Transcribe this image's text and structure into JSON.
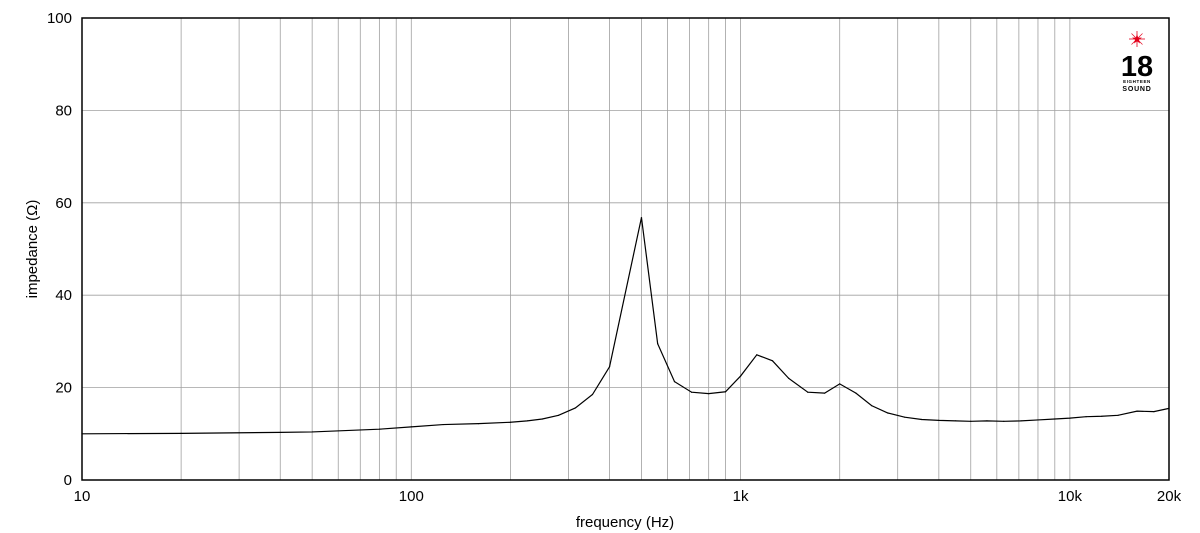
{
  "chart_data": {
    "type": "line",
    "title": "",
    "xlabel": "frequency (Hz)",
    "ylabel": "impedance (Ω)",
    "xscale": "log",
    "xlim": [
      10,
      20000
    ],
    "ylim": [
      0,
      100
    ],
    "grid": true,
    "x_ticks": [
      {
        "value": 10,
        "label": "10"
      },
      {
        "value": 100,
        "label": "100"
      },
      {
        "value": 1000,
        "label": "1k"
      },
      {
        "value": 10000,
        "label": "10k"
      },
      {
        "value": 20000,
        "label": "20k"
      }
    ],
    "y_ticks": [
      {
        "value": 0,
        "label": "0"
      },
      {
        "value": 20,
        "label": "20"
      },
      {
        "value": 40,
        "label": "40"
      },
      {
        "value": 60,
        "label": "60"
      },
      {
        "value": 80,
        "label": "80"
      },
      {
        "value": 100,
        "label": "100"
      }
    ],
    "series": [
      {
        "name": "",
        "color": "#000000",
        "x": [
          10,
          20,
          40,
          50,
          80,
          100,
          125,
          160,
          200,
          225,
          250,
          280,
          315,
          355,
          400,
          500,
          560,
          630,
          710,
          800,
          900,
          1000,
          1120,
          1250,
          1400,
          1600,
          1800,
          2000,
          2240,
          2500,
          2800,
          3150,
          3550,
          4000,
          4500,
          5000,
          5600,
          6300,
          7100,
          8000,
          9000,
          10000,
          11200,
          12500,
          14000,
          16000,
          18000,
          20000
        ],
        "y": [
          10.0,
          10.1,
          10.3,
          10.4,
          11.0,
          11.5,
          12.0,
          12.2,
          12.5,
          12.8,
          13.2,
          14.0,
          15.6,
          18.5,
          24.5,
          56.8,
          29.5,
          21.3,
          19.0,
          18.7,
          19.1,
          22.5,
          27.1,
          25.8,
          22.0,
          19.0,
          18.8,
          20.8,
          18.8,
          16.1,
          14.5,
          13.6,
          13.1,
          12.9,
          12.8,
          12.7,
          12.8,
          12.7,
          12.8,
          13.0,
          13.2,
          13.4,
          13.7,
          13.8,
          14.0,
          14.9,
          14.8,
          15.5
        ]
      }
    ]
  },
  "logo": {
    "number": "18",
    "word_top": "EIGHTEEN",
    "word_bottom": "SOUND",
    "star_color": "#e3001b"
  }
}
